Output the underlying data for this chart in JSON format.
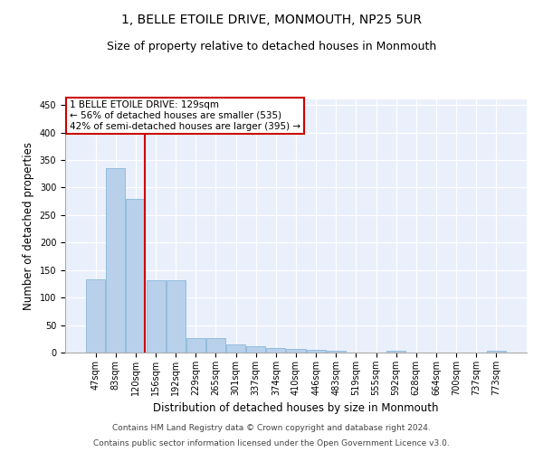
{
  "title": "1, BELLE ETOILE DRIVE, MONMOUTH, NP25 5UR",
  "subtitle": "Size of property relative to detached houses in Monmouth",
  "xlabel": "Distribution of detached houses by size in Monmouth",
  "ylabel": "Number of detached properties",
  "categories": [
    "47sqm",
    "83sqm",
    "120sqm",
    "156sqm",
    "192sqm",
    "229sqm",
    "265sqm",
    "301sqm",
    "337sqm",
    "374sqm",
    "410sqm",
    "446sqm",
    "483sqm",
    "519sqm",
    "555sqm",
    "592sqm",
    "628sqm",
    "664sqm",
    "700sqm",
    "737sqm",
    "773sqm"
  ],
  "values": [
    133,
    335,
    280,
    132,
    132,
    26,
    26,
    15,
    11,
    8,
    6,
    5,
    4,
    0,
    0,
    4,
    0,
    0,
    0,
    0,
    4
  ],
  "bar_color": "#b8d0ea",
  "bar_edge_color": "#7aafd4",
  "vline_x_index": 2,
  "vline_color": "#cc0000",
  "annotation_text_line1": "1 BELLE ETOILE DRIVE: 129sqm",
  "annotation_text_line2": "← 56% of detached houses are smaller (535)",
  "annotation_text_line3": "42% of semi-detached houses are larger (395) →",
  "annotation_box_color": "#cc0000",
  "ylim": [
    0,
    460
  ],
  "yticks": [
    0,
    50,
    100,
    150,
    200,
    250,
    300,
    350,
    400,
    450
  ],
  "footer_line1": "Contains HM Land Registry data © Crown copyright and database right 2024.",
  "footer_line2": "Contains public sector information licensed under the Open Government Licence v3.0.",
  "plot_bg_color": "#eaf0fb",
  "title_fontsize": 10,
  "subtitle_fontsize": 9,
  "axis_label_fontsize": 8.5,
  "tick_fontsize": 7,
  "annotation_fontsize": 7.5,
  "footer_fontsize": 6.5
}
